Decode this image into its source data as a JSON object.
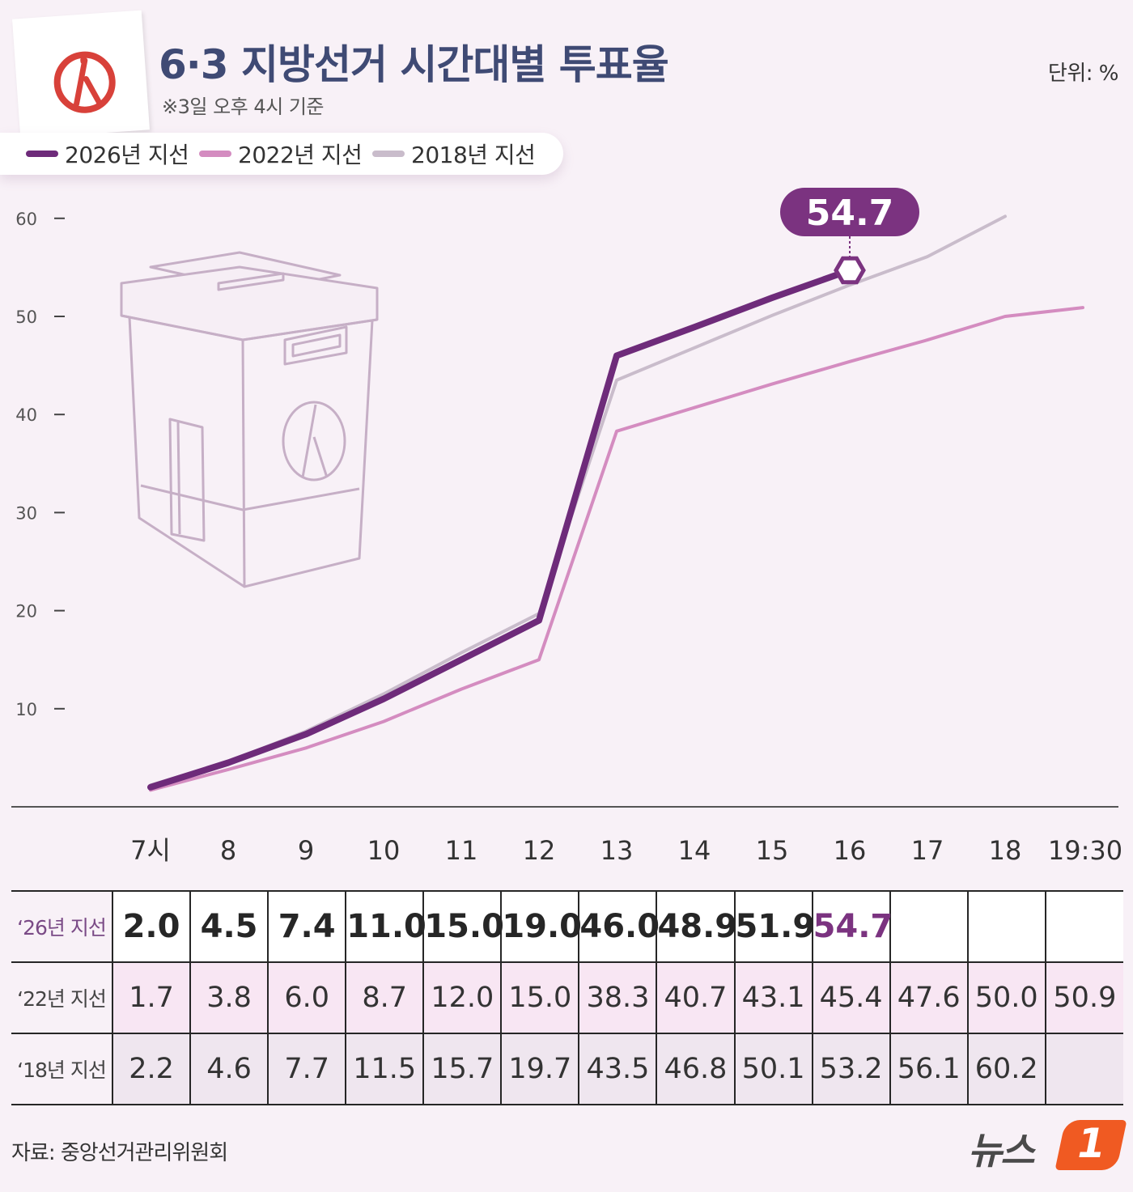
{
  "header": {
    "title": "6·3 지방선거 시간대별 투표율",
    "subtitle": "※3일 오후 4시 기준",
    "unit": "단위: %"
  },
  "legend": [
    {
      "label": "2026년 지선",
      "color": "#6e2b7a"
    },
    {
      "label": "2022년 지선",
      "color": "#d48cc0"
    },
    {
      "label": "2018년 지선",
      "color": "#c9bccb"
    }
  ],
  "chart_data": {
    "type": "line",
    "categories": [
      "7시",
      "8",
      "9",
      "10",
      "11",
      "12",
      "13",
      "14",
      "15",
      "16",
      "17",
      "18",
      "19:30"
    ],
    "series": [
      {
        "name": "2026년 지선",
        "values": [
          2.0,
          4.5,
          7.4,
          11.0,
          15.0,
          19.0,
          46.0,
          48.9,
          51.9,
          54.7,
          null,
          null,
          null
        ],
        "color": "#6e2b7a"
      },
      {
        "name": "2022년 지선",
        "values": [
          1.7,
          3.8,
          6.0,
          8.7,
          12.0,
          15.0,
          38.3,
          40.7,
          43.1,
          45.4,
          47.6,
          50.0,
          50.9
        ],
        "color": "#d48cc0"
      },
      {
        "name": "2018년 지선",
        "values": [
          2.2,
          4.6,
          7.7,
          11.5,
          15.7,
          19.7,
          43.5,
          46.8,
          50.1,
          53.2,
          56.1,
          60.2,
          null
        ],
        "color": "#c9bccb"
      }
    ],
    "yticks": [
      10,
      20,
      30,
      40,
      50,
      60
    ],
    "ylim": [
      0,
      60
    ],
    "highlight": {
      "label": "54.7",
      "series": "2026년 지선",
      "category": "16",
      "value": 54.7
    }
  },
  "table": {
    "rows": [
      {
        "label": "‘26년 지선",
        "values": [
          "2.0",
          "4.5",
          "7.4",
          "11.0",
          "15.0",
          "19.0",
          "46.0",
          "48.9",
          "51.9",
          "54.7",
          "",
          "",
          ""
        ]
      },
      {
        "label": "‘22년 지선",
        "values": [
          "1.7",
          "3.8",
          "6.0",
          "8.7",
          "12.0",
          "15.0",
          "38.3",
          "40.7",
          "43.1",
          "45.4",
          "47.6",
          "50.0",
          "50.9"
        ]
      },
      {
        "label": "‘18년 지선",
        "values": [
          "2.2",
          "4.6",
          "7.7",
          "11.5",
          "15.7",
          "19.7",
          "43.5",
          "46.8",
          "50.1",
          "53.2",
          "56.1",
          "60.2",
          ""
        ]
      }
    ]
  },
  "footer": {
    "source": "자료: 중앙선거관리위원회",
    "logo_text": "뉴스",
    "logo_number": "1"
  }
}
